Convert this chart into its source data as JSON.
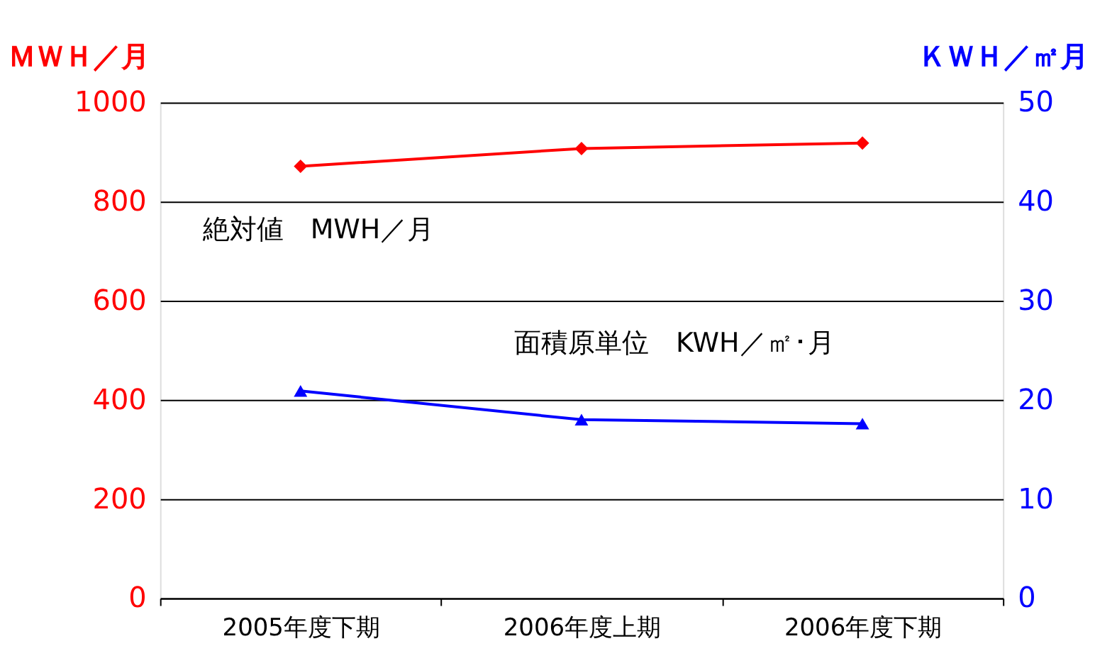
{
  "chart_data": {
    "type": "line",
    "ylabel": "ＭＷＨ／月",
    "y2label": "ＫＷＨ／㎡月",
    "categories": [
      "2005年度下期",
      "2006年度上期",
      "2006年度下期"
    ],
    "series": [
      {
        "color": "#ff0000",
        "values": [
          871,
          907,
          918
        ],
        "marker": "diamond"
      },
      {
        "color": "#0000ff",
        "values": [
          20.9,
          18.0,
          17.6
        ],
        "axis": "y2",
        "marker": "triangle"
      }
    ],
    "ylim": [
      0,
      1000
    ],
    "yticks": [
      0,
      200,
      400,
      600,
      800,
      1000
    ],
    "y2lim": [
      0,
      50
    ],
    "y2ticks": [
      0,
      10,
      20,
      30,
      40,
      50
    ],
    "grid": "y",
    "annotations": [
      "絶対値　MWH／月",
      "面積原単位　KWH／㎡･月"
    ]
  }
}
